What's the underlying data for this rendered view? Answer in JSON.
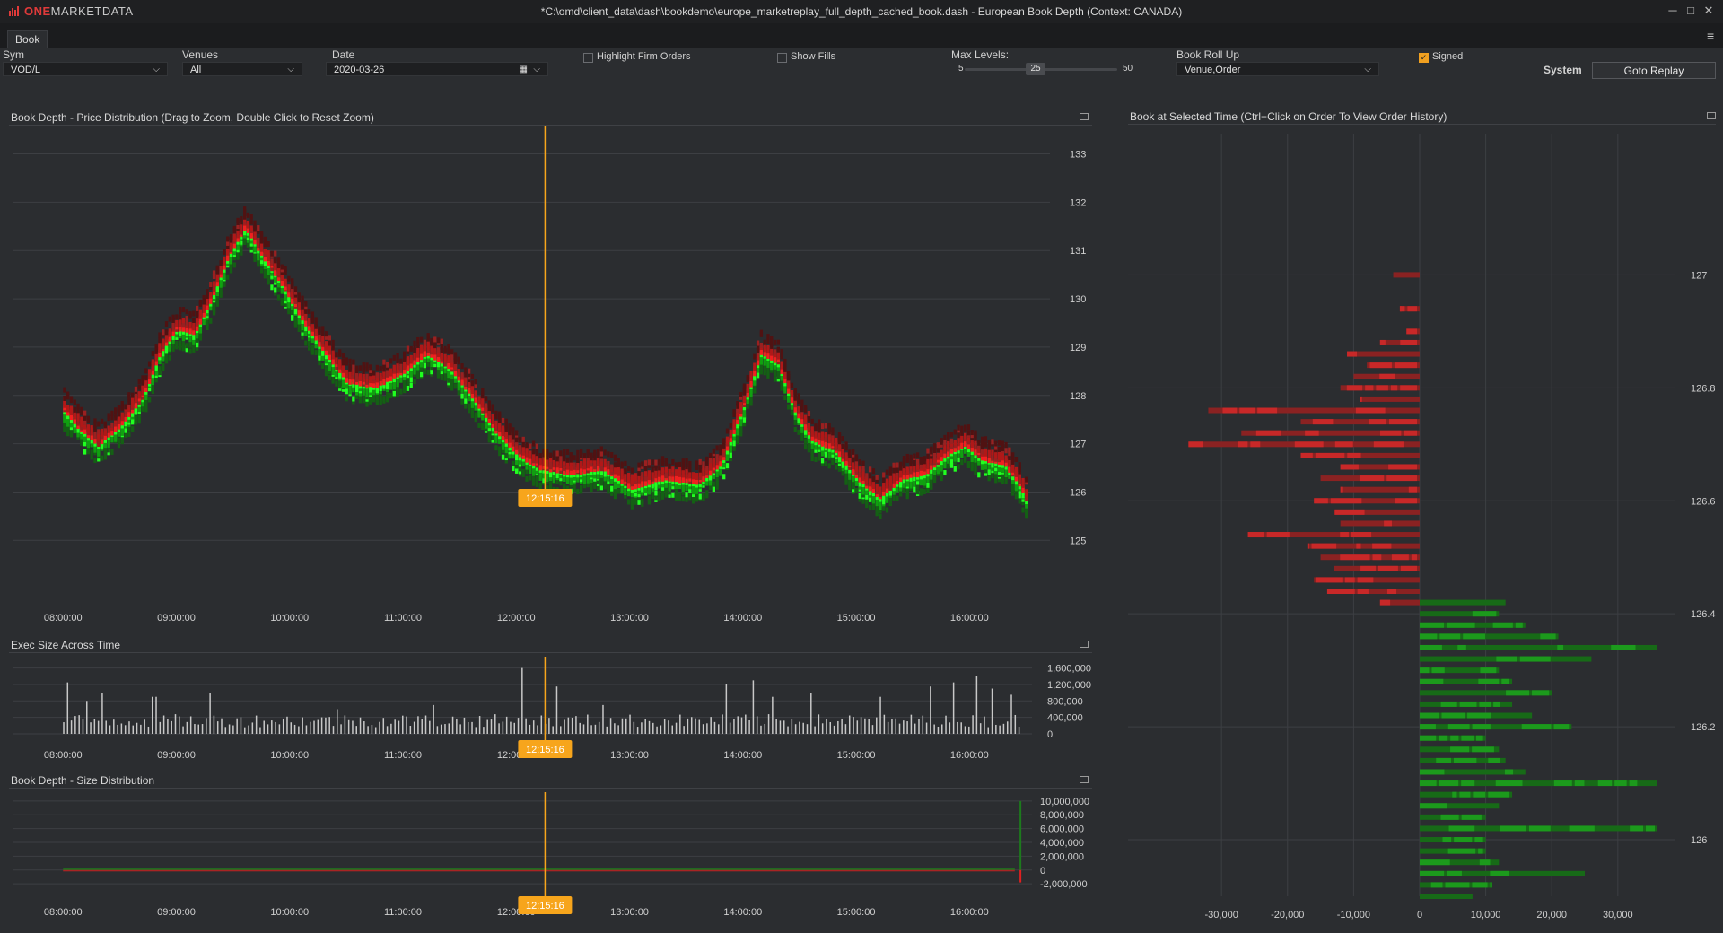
{
  "app": {
    "logo_one": "ONE",
    "logo_rest": "MARKETDATA",
    "title": "*C:\\omd\\client_data\\dash\\bookdemo\\europe_marketreplay_full_depth_cached_book.dash - European Book Depth (Context: CANADA)",
    "tab": "Book",
    "icons": [
      "chart-bars-icon",
      "minimize-icon",
      "maximize-icon",
      "close-icon",
      "menu-icon",
      "calendar-icon",
      "chevron-down-icon",
      "panel-maximize-icon"
    ]
  },
  "controls": {
    "sym": {
      "label": "Sym",
      "value": "VOD/L"
    },
    "venues": {
      "label": "Venues",
      "value": "All"
    },
    "date": {
      "label": "Date",
      "value": "2020-03-26"
    },
    "highlight": {
      "label": "Highlight Firm Orders",
      "checked": false
    },
    "fills": {
      "label": "Show Fills",
      "checked": false
    },
    "maxlevels": {
      "label": "Max Levels:",
      "min": "5",
      "value": "25",
      "max": "50"
    },
    "rollup": {
      "label": "Book Roll Up",
      "value": "Venue,Order"
    },
    "signed": {
      "label": "Signed",
      "checked": true
    },
    "system_label": "System",
    "goto_button": "Goto Replay"
  },
  "colors": {
    "accent": "#f7a51c",
    "bid": "#1fd01f",
    "ask": "#e02020",
    "bid_dark": "#1d7a1d",
    "ask_dark": "#a82424",
    "bg": "#2b2d30"
  },
  "selected_time": "12:15:16",
  "panels": {
    "price": "Book Depth - Price Distribution (Drag to Zoom, Double Click to Reset Zoom)",
    "exec": "Exec Size Across Time",
    "size": "Book Depth - Size Distribution",
    "book": "Book at Selected Time (Ctrl+Click on Order To View Order History)"
  },
  "chart_data": [
    {
      "type": "heatmap",
      "name": "price-distribution",
      "title": "Book Depth - Price Distribution (Drag to Zoom, Double Click to Reset Zoom)",
      "x_ticks": [
        "08:00:00",
        "09:00:00",
        "10:00:00",
        "11:00:00",
        "12:00:00",
        "13:00:00",
        "14:00:00",
        "15:00:00",
        "16:00:00"
      ],
      "y_ticks": [
        "133",
        "132",
        "131",
        "130",
        "129",
        "128",
        "127",
        "126",
        "125"
      ],
      "ylim": [
        124.3,
        133.4
      ],
      "xlim_hours": [
        7.8,
        16.75
      ],
      "grid": true,
      "mid_price": [
        [
          8.0,
          127.7
        ],
        [
          8.15,
          127.3
        ],
        [
          8.3,
          127.0
        ],
        [
          8.5,
          127.4
        ],
        [
          8.7,
          128.0
        ],
        [
          8.85,
          128.9
        ],
        [
          9.0,
          129.4
        ],
        [
          9.15,
          129.3
        ],
        [
          9.3,
          130.0
        ],
        [
          9.45,
          130.9
        ],
        [
          9.6,
          131.5
        ],
        [
          9.75,
          130.9
        ],
        [
          9.9,
          130.4
        ],
        [
          10.1,
          129.6
        ],
        [
          10.3,
          128.9
        ],
        [
          10.5,
          128.3
        ],
        [
          10.75,
          128.2
        ],
        [
          11.0,
          128.5
        ],
        [
          11.2,
          128.9
        ],
        [
          11.4,
          128.6
        ],
        [
          11.6,
          128.0
        ],
        [
          11.8,
          127.3
        ],
        [
          12.0,
          126.8
        ],
        [
          12.2,
          126.5
        ],
        [
          12.5,
          126.4
        ],
        [
          12.75,
          126.5
        ],
        [
          13.0,
          126.1
        ],
        [
          13.3,
          126.3
        ],
        [
          13.6,
          126.2
        ],
        [
          13.8,
          126.6
        ],
        [
          14.0,
          127.8
        ],
        [
          14.15,
          128.9
        ],
        [
          14.3,
          128.7
        ],
        [
          14.45,
          127.7
        ],
        [
          14.6,
          127.1
        ],
        [
          14.8,
          126.9
        ],
        [
          15.0,
          126.3
        ],
        [
          15.2,
          125.9
        ],
        [
          15.4,
          126.3
        ],
        [
          15.6,
          126.4
        ],
        [
          15.8,
          126.8
        ],
        [
          15.95,
          127.0
        ],
        [
          16.1,
          126.7
        ],
        [
          16.3,
          126.6
        ],
        [
          16.45,
          126.1
        ],
        [
          16.5,
          125.8
        ]
      ],
      "legend": "none"
    },
    {
      "type": "bar",
      "name": "exec-size",
      "title": "Exec Size Across Time",
      "x_ticks": [
        "08:00:00",
        "09:00:00",
        "10:00:00",
        "11:00:00",
        "12:00:00",
        "13:00:00",
        "14:00:00",
        "15:00:00",
        "16:00:00"
      ],
      "y_ticks": [
        "1,600,000",
        "1,200,000",
        "800,000",
        "400,000",
        "0"
      ],
      "ylim": [
        0,
        1700000
      ],
      "xlim_hours": [
        7.8,
        16.75
      ],
      "peaks": [
        [
          8.05,
          1250000
        ],
        [
          8.2,
          800000
        ],
        [
          8.35,
          1000000
        ],
        [
          8.8,
          900000
        ],
        [
          9.3,
          1000000
        ],
        [
          10.4,
          600000
        ],
        [
          11.25,
          700000
        ],
        [
          12.05,
          1600000
        ],
        [
          12.35,
          1150000
        ],
        [
          12.75,
          700000
        ],
        [
          13.85,
          1200000
        ],
        [
          14.1,
          1300000
        ],
        [
          14.25,
          900000
        ],
        [
          14.6,
          1000000
        ],
        [
          15.2,
          900000
        ],
        [
          15.65,
          1150000
        ],
        [
          15.85,
          1250000
        ],
        [
          16.05,
          1400000
        ],
        [
          16.2,
          1100000
        ],
        [
          16.35,
          950000
        ]
      ],
      "baseline": 320000
    },
    {
      "type": "area",
      "name": "size-distribution",
      "title": "Book Depth - Size Distribution",
      "x_ticks": [
        "08:00:00",
        "09:00:00",
        "10:00:00",
        "11:00:00",
        "12:00:00",
        "13:00:00",
        "14:00:00",
        "15:00:00",
        "16:00:00"
      ],
      "y_ticks": [
        "10,000,000",
        "8,000,000",
        "6,000,000",
        "4,000,000",
        "2,000,000",
        "0",
        "-2,000,000"
      ],
      "ylim": [
        -2500000,
        10500000
      ],
      "series": [
        {
          "name": "bid",
          "values": [
            [
              8.0,
              200000
            ],
            [
              16.4,
              300000
            ],
            [
              16.45,
              10000000
            ]
          ]
        },
        {
          "name": "ask",
          "values": [
            [
              8.0,
              -200000
            ],
            [
              16.4,
              -300000
            ],
            [
              16.45,
              -1800000
            ]
          ]
        }
      ]
    },
    {
      "type": "bar",
      "name": "book-at-selected-time",
      "title": "Book at Selected Time (Ctrl+Click on Order To View Order History)",
      "x_ticks": [
        "-30,000",
        "-20,000",
        "-10,000",
        "0",
        "10,000",
        "20,000",
        "30,000"
      ],
      "xlim": [
        -36000,
        36000
      ],
      "y_ticks": [
        "127",
        "126.8",
        "126.6",
        "126.4",
        "126.2",
        "126"
      ],
      "ylim": [
        125.9,
        127.25
      ],
      "asks": [
        [
          127.0,
          4000
        ],
        [
          126.94,
          3000
        ],
        [
          126.9,
          2000
        ],
        [
          126.88,
          6000
        ],
        [
          126.86,
          11000
        ],
        [
          126.84,
          8000
        ],
        [
          126.82,
          10000
        ],
        [
          126.8,
          12000
        ],
        [
          126.78,
          9000
        ],
        [
          126.76,
          32000
        ],
        [
          126.74,
          18000
        ],
        [
          126.72,
          27000
        ],
        [
          126.7,
          35000
        ],
        [
          126.68,
          18000
        ],
        [
          126.66,
          12000
        ],
        [
          126.64,
          15000
        ],
        [
          126.62,
          12000
        ],
        [
          126.6,
          16000
        ],
        [
          126.58,
          13000
        ],
        [
          126.56,
          12000
        ],
        [
          126.54,
          26000
        ],
        [
          126.52,
          17000
        ],
        [
          126.5,
          15000
        ],
        [
          126.48,
          13000
        ],
        [
          126.46,
          16000
        ],
        [
          126.44,
          14000
        ],
        [
          126.42,
          6000
        ]
      ],
      "bids": [
        [
          126.42,
          13000
        ],
        [
          126.4,
          12000
        ],
        [
          126.38,
          16000
        ],
        [
          126.36,
          21000
        ],
        [
          126.34,
          36000
        ],
        [
          126.32,
          26000
        ],
        [
          126.3,
          12000
        ],
        [
          126.28,
          14000
        ],
        [
          126.26,
          20000
        ],
        [
          126.24,
          14000
        ],
        [
          126.22,
          17000
        ],
        [
          126.2,
          23000
        ],
        [
          126.18,
          10000
        ],
        [
          126.16,
          12000
        ],
        [
          126.14,
          13000
        ],
        [
          126.12,
          16000
        ],
        [
          126.1,
          36000
        ],
        [
          126.08,
          14000
        ],
        [
          126.06,
          12000
        ],
        [
          126.04,
          10000
        ],
        [
          126.02,
          36000
        ],
        [
          126.0,
          10000
        ],
        [
          125.98,
          10000
        ],
        [
          125.96,
          12000
        ],
        [
          125.94,
          25000
        ],
        [
          125.92,
          11000
        ],
        [
          125.9,
          8000
        ]
      ]
    }
  ]
}
